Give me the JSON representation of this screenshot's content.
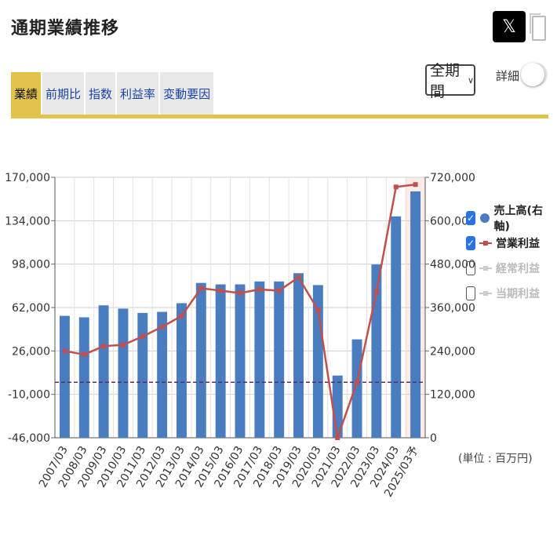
{
  "page": {
    "title": "通期業績推移"
  },
  "header": {
    "x_label": "𝕏"
  },
  "tabs": [
    {
      "label": "業績",
      "active": true
    },
    {
      "label": "前期比",
      "active": false
    },
    {
      "label": "指数",
      "active": false
    },
    {
      "label": "利益率",
      "active": false
    },
    {
      "label": "変動要因",
      "active": false
    }
  ],
  "controls": {
    "period_value": "全期間",
    "detail_label": "詳細 :"
  },
  "legend": [
    {
      "label": "売上高(右軸)",
      "checked": true,
      "marker": "circle",
      "color": "#4a7cc0"
    },
    {
      "label": "営業利益",
      "checked": true,
      "marker": "line",
      "color": "#c0504d"
    },
    {
      "label": "経常利益",
      "checked": false,
      "marker": "line",
      "color": "#cccccc"
    },
    {
      "label": "当期利益",
      "checked": false,
      "marker": "line",
      "color": "#cccccc"
    }
  ],
  "unit_label": "(単位 : 百万円)",
  "chart_data": {
    "type": "bar",
    "categories": [
      "2007/03",
      "2008/03",
      "2009/03",
      "2010/03",
      "2011/03",
      "2012/03",
      "2013/03",
      "2014/03",
      "2015/03",
      "2016/03",
      "2017/03",
      "2018/03",
      "2019/03",
      "2020/03",
      "2021/03",
      "2022/03",
      "2023/03",
      "2024/03",
      "2025/03予"
    ],
    "series": [
      {
        "name": "売上高(右軸)",
        "type": "bar",
        "axis": "right",
        "color": "#4a7cc0",
        "values": [
          337000,
          333000,
          366000,
          357000,
          345000,
          348000,
          372000,
          428000,
          424000,
          424000,
          432000,
          432000,
          455000,
          422000,
          172000,
          272000,
          479000,
          612000,
          681000
        ]
      },
      {
        "name": "営業利益",
        "type": "line",
        "axis": "left",
        "color": "#c0504d",
        "values": [
          26000,
          23000,
          30000,
          31000,
          38000,
          46000,
          55000,
          78000,
          76000,
          74000,
          77000,
          76000,
          87000,
          60000,
          -46000,
          0,
          75000,
          162000,
          164000
        ]
      }
    ],
    "left_axis": {
      "ylim": [
        -46000,
        170000
      ],
      "ticks": [
        "170,000",
        "134,000",
        "98,000",
        "62,000",
        "26,000",
        "-10,000",
        "-46,000"
      ]
    },
    "right_axis": {
      "ylim": [
        0,
        720000
      ],
      "ticks": [
        "720,000",
        "600,000",
        "480,000",
        "360,000",
        "240,000",
        "120,000",
        "0"
      ]
    },
    "reference_line": {
      "value": 0,
      "axis": "left",
      "style": "dashed",
      "color": "#5b2b6e"
    },
    "grid": true
  }
}
